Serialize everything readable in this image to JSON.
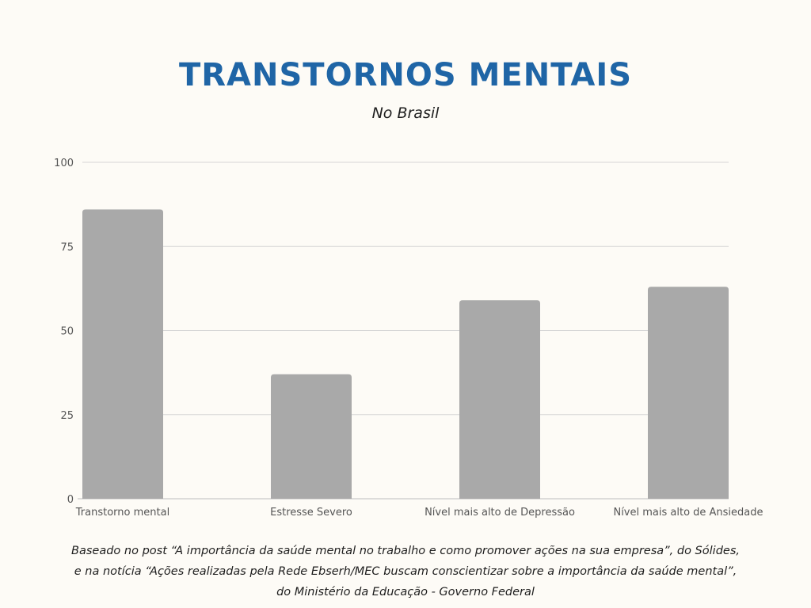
{
  "title": "TRANSTORNOS MENTAIS",
  "subtitle": "No Brasil",
  "chart_data": {
    "type": "bar",
    "categories": [
      "Transtorno mental",
      "Estresse Severo",
      "Nível mais alto de Depressão",
      "Nível mais alto de Ansiedade"
    ],
    "values": [
      86,
      37,
      59,
      63
    ],
    "yticks": [
      "0",
      "25",
      "50",
      "75",
      "100"
    ],
    "ylim": [
      0,
      100
    ],
    "grid": true,
    "bar_color": "#a9a9a9",
    "grid_color": "#d6d6d6"
  },
  "footnote": {
    "line1": "Baseado no post “A importância da saúde mental no trabalho e como promover ações na sua empresa”, do Sólides,",
    "line2": "e na notícia “Ações realizadas pela Rede Ebserh/MEC buscam conscientizar sobre a importância da saúde mental”,",
    "line3": "do Ministério da Educação - Governo Federal"
  },
  "colors": {
    "title": "#1f65a6",
    "background": "#fdfbf6",
    "text": "#1e1e1e"
  }
}
